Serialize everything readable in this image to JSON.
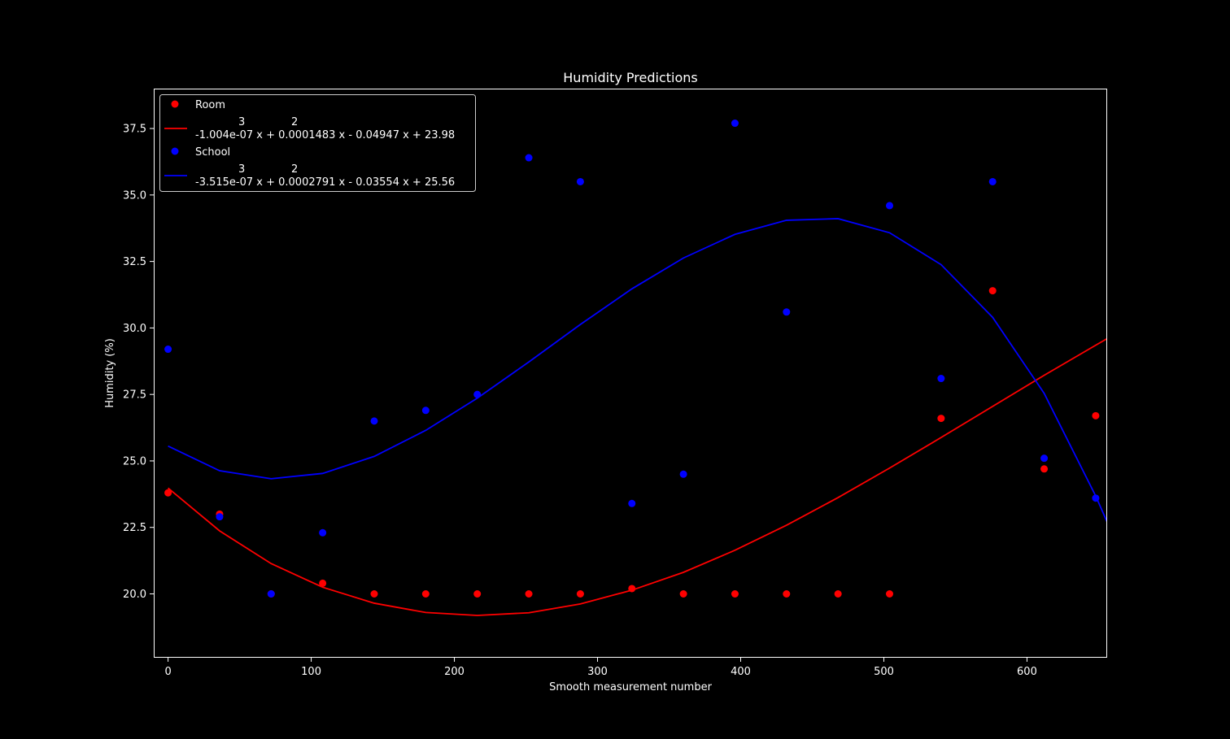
{
  "chart_data": {
    "type": "scatter",
    "title": "Humidity Predictions",
    "xlabel": "Smooth measurement number",
    "ylabel": "Humidity (%)",
    "xlim": [
      -10,
      656
    ],
    "ylim": [
      17.6,
      39
    ],
    "xticks": [
      0,
      100,
      200,
      300,
      400,
      500,
      600
    ],
    "yticks": [
      20.0,
      22.5,
      25.0,
      27.5,
      30.0,
      32.5,
      35.0,
      37.5
    ],
    "ytick_labels": [
      "20.0",
      "22.5",
      "25.0",
      "27.5",
      "30.0",
      "32.5",
      "35.0",
      "37.5"
    ],
    "grid": false,
    "legend_position": "top-left",
    "series": [
      {
        "name": "Room",
        "kind": "points",
        "color": "#ff0000",
        "x": [
          0,
          36,
          72,
          108,
          144,
          180,
          216,
          252,
          288,
          324,
          360,
          396,
          432,
          468,
          504,
          540,
          576,
          612,
          648
        ],
        "y": [
          23.8,
          23.0,
          20.0,
          20.4,
          20.0,
          20.0,
          20.0,
          20.0,
          20.0,
          20.2,
          20.0,
          20.0,
          20.0,
          20.0,
          20.0,
          26.6,
          31.4,
          24.7,
          26.7
        ]
      },
      {
        "name": "-1.004e-07 x + 0.0001483 x - 0.04947 x + 23.98",
        "exponents": [
          "3",
          "2"
        ],
        "kind": "line",
        "color": "#ff0000",
        "x": [
          0,
          36,
          72,
          108,
          144,
          180,
          216,
          252,
          288,
          324,
          360,
          396,
          432,
          468,
          504,
          540,
          576,
          612,
          648,
          656
        ],
        "y": [
          23.98,
          22.37,
          21.14,
          20.25,
          19.65,
          19.3,
          19.19,
          19.29,
          19.62,
          20.14,
          20.81,
          21.64,
          22.58,
          23.62,
          24.73,
          25.88,
          27.05,
          28.22,
          29.35,
          29.6
        ]
      },
      {
        "name": "School",
        "kind": "points",
        "color": "#0000ff",
        "x": [
          0,
          36,
          72,
          108,
          144,
          180,
          216,
          252,
          288,
          324,
          360,
          396,
          432,
          504,
          540,
          576,
          612,
          648
        ],
        "y": [
          29.2,
          22.9,
          20.0,
          22.3,
          26.5,
          26.9,
          27.5,
          36.4,
          35.5,
          23.4,
          24.5,
          37.7,
          30.6,
          34.6,
          28.1,
          35.5,
          25.1,
          23.6
        ]
      },
      {
        "name": "-3.515e-07 x + 0.0002791 x - 0.03554 x + 25.56",
        "exponents": [
          "3",
          "2"
        ],
        "kind": "line",
        "color": "#0000ff",
        "x": [
          0,
          36,
          72,
          108,
          144,
          180,
          216,
          252,
          288,
          324,
          360,
          396,
          432,
          468,
          504,
          540,
          576,
          612,
          648,
          656
        ],
        "y": [
          25.56,
          24.63,
          24.33,
          24.53,
          25.17,
          26.15,
          27.36,
          28.72,
          30.13,
          31.47,
          32.63,
          33.52,
          34.05,
          34.11,
          33.58,
          32.38,
          30.4,
          27.54,
          23.68,
          22.7
        ]
      }
    ]
  }
}
